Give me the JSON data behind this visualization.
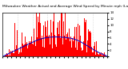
{
  "title": "Milwaukee Weather Actual and Average Wind Speed by Minute mph (Last 24 Hours)",
  "title_fontsize": 3.2,
  "bg_color": "#ffffff",
  "plot_bg_color": "#ffffff",
  "bar_color": "#ff0000",
  "line_color": "#0000cc",
  "grid_color": "#bbbbbb",
  "ylim": [
    0,
    14
  ],
  "ytick_labels": [
    "",
    "2",
    "4",
    "6",
    "8",
    "10",
    "12",
    "14"
  ],
  "ytick_values": [
    0,
    2,
    4,
    6,
    8,
    10,
    12,
    14
  ],
  "n_points": 1440,
  "n_grid_lines": 6,
  "seed": 12345
}
